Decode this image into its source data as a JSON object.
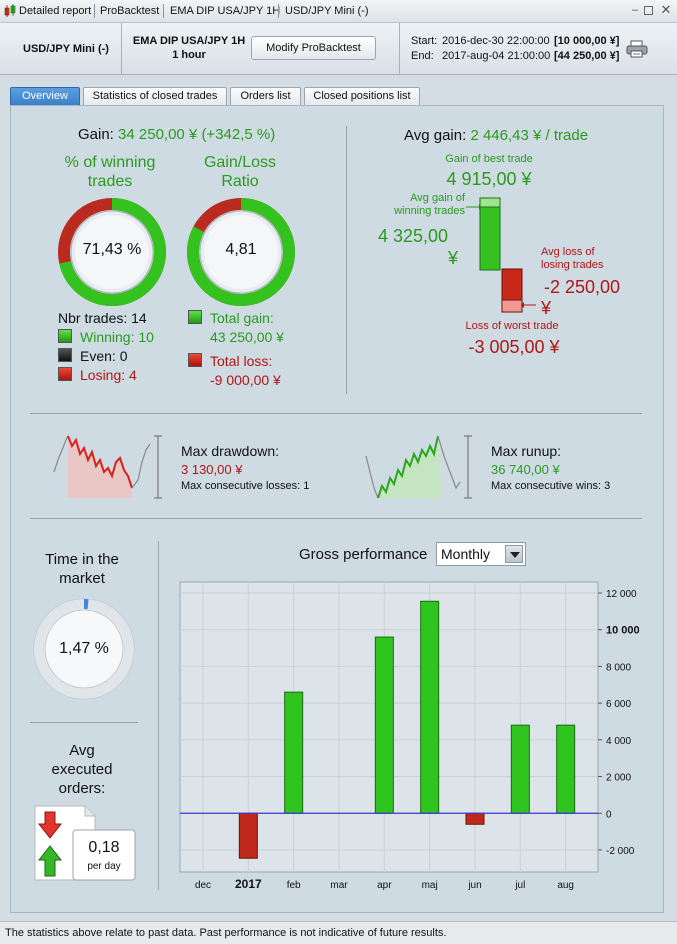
{
  "titlebar": {
    "crumbs": [
      "Detailed report",
      "ProBacktest",
      "EMA DIP USA/JPY 1H",
      "USD/JPY Mini (-)"
    ]
  },
  "header": {
    "instrument": "USD/JPY Mini (-)",
    "system_name": "EMA DIP USA/JPY 1H",
    "timeframe": "1 hour",
    "modify_button": "Modify ProBacktest",
    "start_label": "Start:",
    "start_date": "2016-dec-30 22:00:00",
    "start_value": "[10 000,00 ¥]",
    "end_label": "End:",
    "end_date": "2017-aug-04 21:00:00",
    "end_value": "[44 250,00 ¥]"
  },
  "tabs": [
    {
      "label": "Overview",
      "active": true
    },
    {
      "label": "Statistics of closed trades",
      "active": false
    },
    {
      "label": "Orders list",
      "active": false
    },
    {
      "label": "Closed positions list",
      "active": false
    }
  ],
  "gain": {
    "label": "Gain:",
    "value": "34 250,00 ¥ (+342,5 %)"
  },
  "winning_pct": {
    "title_line1": "% of winning",
    "title_line2": "trades",
    "value": "71,43 %",
    "fraction": 0.7143
  },
  "gain_loss_ratio": {
    "title_line1": "Gain/Loss",
    "title_line2": "Ratio",
    "value": "4,81",
    "fraction": 0.828
  },
  "trades": {
    "nbr_label": "Nbr trades: 14",
    "winning": "Winning: 10",
    "even": "Even: 0",
    "losing": "Losing: 4",
    "total_gain_label": "Total gain:",
    "total_gain": "43 250,00 ¥",
    "total_loss_label": "Total loss:",
    "total_loss": "-9 000,00 ¥"
  },
  "avg": {
    "avg_gain_label": "Avg gain:",
    "avg_gain_value": "2 446,43 ¥ / trade",
    "best_label": "Gain of best trade",
    "best_value": "4 915,00 ¥",
    "avg_win_label_1": "Avg gain of",
    "avg_win_label_2": "winning trades",
    "avg_win_value": "4 325,00",
    "avg_win_currency": "¥",
    "avg_loss_label_1": "Avg loss of",
    "avg_loss_label_2": "losing trades",
    "avg_loss_value": "-2 250,00",
    "avg_loss_currency": "¥",
    "worst_label": "Loss of worst trade",
    "worst_value": "-3 005,00 ¥"
  },
  "drawdown": {
    "label": "Max drawdown:",
    "value": "3 130,00 ¥",
    "consec": "Max consecutive losses: 1"
  },
  "runup": {
    "label": "Max runup:",
    "value": "36 740,00 ¥",
    "consec": "Max consecutive wins: 3"
  },
  "market": {
    "title_line1": "Time in the",
    "title_line2": "market",
    "value": "1,47 %",
    "fraction": 0.0147
  },
  "orders": {
    "title_line1": "Avg",
    "title_line2": "executed",
    "title_line3": "orders:",
    "value": "0,18",
    "unit": "per day"
  },
  "performance": {
    "title": "Gross performance",
    "period": "Monthly"
  },
  "chart_data": {
    "type": "bar",
    "categories": [
      "dec",
      "2017",
      "feb",
      "mar",
      "apr",
      "maj",
      "jun",
      "jul",
      "aug"
    ],
    "values": [
      0,
      -2450,
      6600,
      0,
      9600,
      11550,
      -600,
      4800,
      4800
    ],
    "ylim": [
      -3200,
      12600
    ],
    "yticks": [
      -2000,
      0,
      2000,
      4000,
      6000,
      8000,
      10000,
      12000
    ],
    "ytick_labels": [
      "-2 000",
      "0",
      "2 000",
      "4 000",
      "6 000",
      "8 000",
      "10 000",
      "12 000"
    ],
    "grid": true,
    "colors": {
      "positive": "#2fc41e",
      "negative": "#c0281b",
      "zero_line": "#3a3ad0"
    }
  },
  "footer": {
    "text": "The statistics above relate to past data. Past performance is not indicative of future results."
  }
}
